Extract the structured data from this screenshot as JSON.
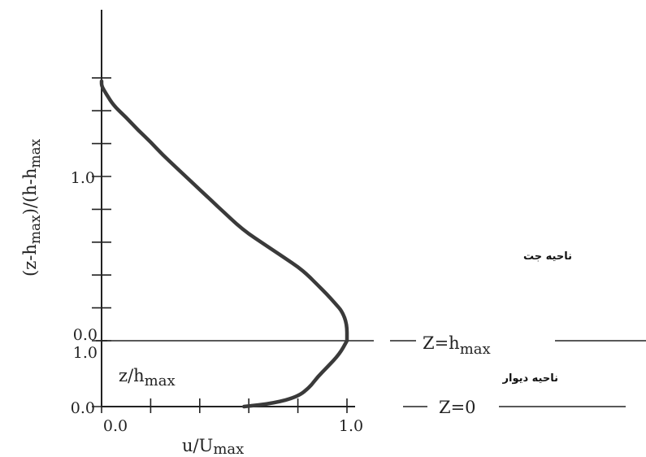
{
  "chart_data": {
    "type": "line",
    "xlabel": "u/U",
    "xlabel_sub": "max",
    "xlim": [
      0,
      1
    ],
    "x_ticks": [
      "0.0",
      "1.0"
    ],
    "upper_axis": {
      "ylabel": "(z-h",
      "ylabel_sub1": "max",
      "ylabel_mid": ")/(h-h",
      "ylabel_sub2": "max",
      "ylim": [
        0,
        1.6
      ],
      "y_ticks": [
        "0.0",
        "1.0"
      ]
    },
    "lower_axis": {
      "ylabel": "z/h",
      "ylabel_sub": "max",
      "ylim": [
        0,
        1
      ],
      "y_ticks": [
        "0.0",
        "1.0"
      ]
    },
    "series": [
      {
        "upper_region": {
          "x": [
            1.0,
            1.0,
            0.98,
            0.95,
            0.92,
            0.88,
            0.84,
            0.8,
            0.75,
            0.7,
            0.65,
            0.6,
            0.55,
            0.5,
            0.45,
            0.4,
            0.35,
            0.3,
            0.25,
            0.2,
            0.15,
            0.1,
            0.05,
            0.02,
            0.0,
            0.0
          ],
          "y": [
            0.0,
            0.1,
            0.18,
            0.23,
            0.28,
            0.34,
            0.4,
            0.45,
            0.5,
            0.55,
            0.6,
            0.65,
            0.71,
            0.78,
            0.85,
            0.92,
            0.99,
            1.06,
            1.13,
            1.21,
            1.28,
            1.36,
            1.43,
            1.5,
            1.55,
            1.58
          ]
        },
        "lower_region": {
          "x": [
            0.58,
            0.7,
            0.8,
            0.85,
            0.88,
            0.92,
            0.97,
            1.0
          ],
          "y": [
            0.0,
            0.05,
            0.15,
            0.3,
            0.45,
            0.6,
            0.8,
            1.0
          ]
        }
      }
    ],
    "annotations": {
      "jet_region": "ناحیه جت",
      "wall_region": "ناحیه دیوار",
      "z_hmax": "Z=h",
      "z_hmax_sub": "max",
      "z_zero": "Z=0"
    }
  }
}
